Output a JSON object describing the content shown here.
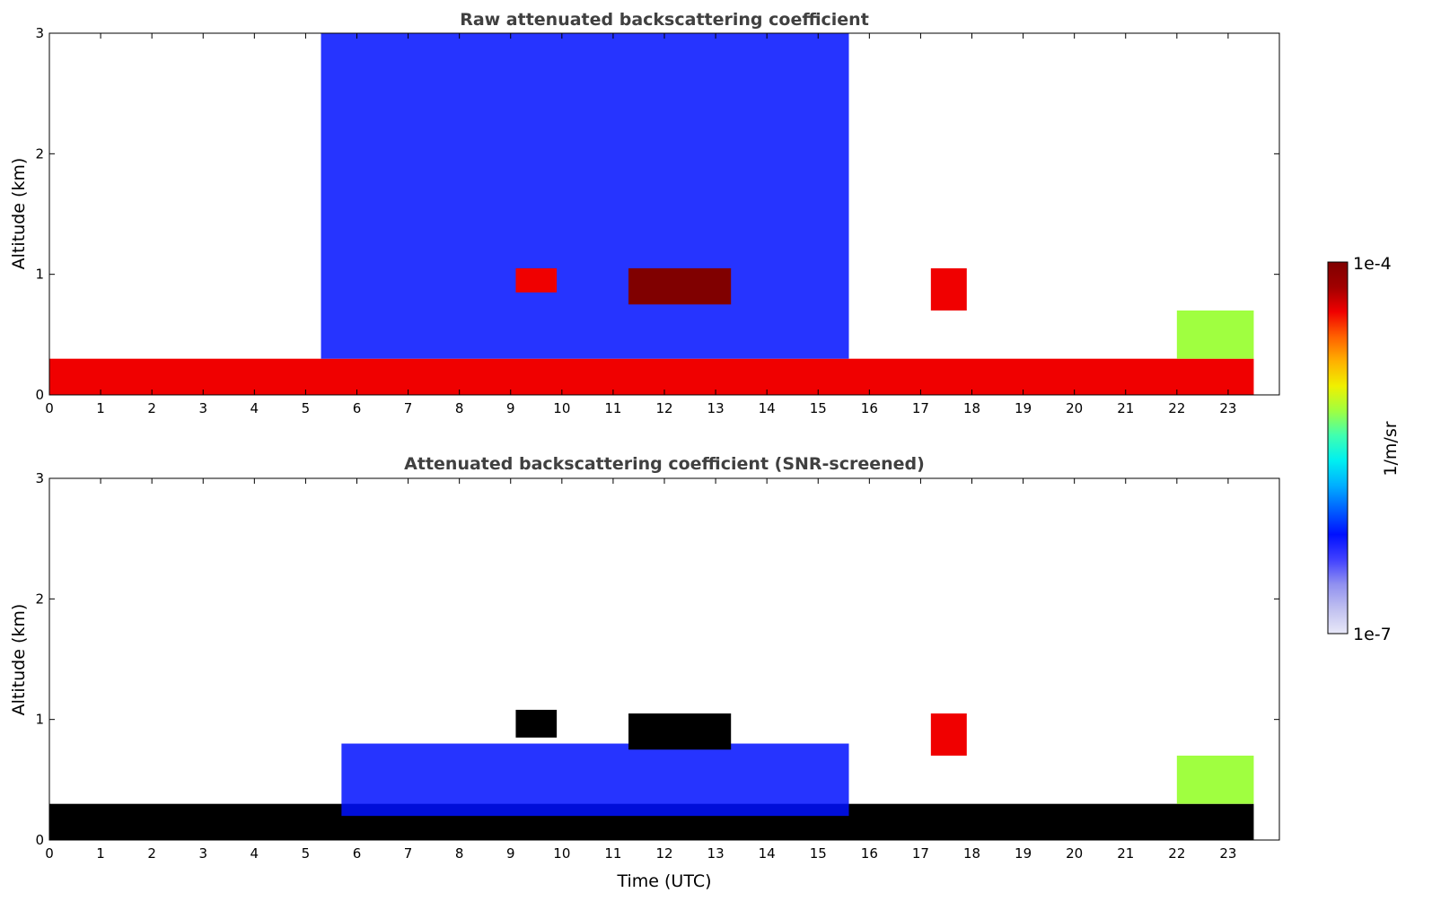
{
  "chart_data": [
    {
      "type": "heatmap",
      "title": "Raw attenuated backscattering coefficient",
      "xlabel": "",
      "ylabel": "Altitude (km)",
      "xlim": [
        0,
        24
      ],
      "ylim": [
        0,
        3
      ],
      "xticks": [
        "0",
        "1",
        "2",
        "3",
        "4",
        "5",
        "6",
        "7",
        "8",
        "9",
        "10",
        "11",
        "12",
        "13",
        "14",
        "15",
        "16",
        "17",
        "18",
        "19",
        "20",
        "21",
        "22",
        "23"
      ],
      "yticks": [
        "0",
        "1",
        "2",
        "3"
      ],
      "grid": false,
      "features": [
        {
          "name": "boundary layer",
          "x": [
            0,
            23.5
          ],
          "y": [
            0,
            0.3
          ],
          "level": "high"
        },
        {
          "name": "noise region",
          "x": [
            5.3,
            15.6
          ],
          "y": [
            0.3,
            3.0
          ],
          "level": "low"
        },
        {
          "name": "cloud",
          "x": [
            11.3,
            13.3
          ],
          "y": [
            0.75,
            1.05
          ],
          "level": "saturated"
        },
        {
          "name": "cloud",
          "x": [
            9.1,
            9.9
          ],
          "y": [
            0.85,
            1.05
          ],
          "level": "high"
        },
        {
          "name": "cloud",
          "x": [
            17.2,
            17.9
          ],
          "y": [
            0.7,
            1.05
          ],
          "level": "high"
        },
        {
          "name": "aerosol layer",
          "x": [
            22.0,
            23.5
          ],
          "y": [
            0.3,
            0.7
          ],
          "level": "medium"
        }
      ]
    },
    {
      "type": "heatmap",
      "title": "Attenuated backscattering coefficient (SNR-screened)",
      "xlabel": "Time (UTC)",
      "ylabel": "Altitude (km)",
      "xlim": [
        0,
        24
      ],
      "ylim": [
        0,
        3
      ],
      "xticks": [
        "0",
        "1",
        "2",
        "3",
        "4",
        "5",
        "6",
        "7",
        "8",
        "9",
        "10",
        "11",
        "12",
        "13",
        "14",
        "15",
        "16",
        "17",
        "18",
        "19",
        "20",
        "21",
        "22",
        "23"
      ],
      "yticks": [
        "0",
        "1",
        "2",
        "3"
      ],
      "grid": false,
      "features": [
        {
          "name": "boundary layer",
          "x": [
            0,
            23.5
          ],
          "y": [
            0,
            0.3
          ],
          "level": "saturated"
        },
        {
          "name": "low aerosol",
          "x": [
            5.7,
            15.6
          ],
          "y": [
            0.2,
            0.8
          ],
          "level": "low"
        },
        {
          "name": "cloud",
          "x": [
            11.3,
            13.3
          ],
          "y": [
            0.75,
            1.05
          ],
          "level": "saturated"
        },
        {
          "name": "cloud",
          "x": [
            9.1,
            9.9
          ],
          "y": [
            0.85,
            1.08
          ],
          "level": "saturated"
        },
        {
          "name": "cloud",
          "x": [
            17.2,
            17.9
          ],
          "y": [
            0.7,
            1.05
          ],
          "level": "high"
        },
        {
          "name": "aerosol layer",
          "x": [
            22.0,
            23.5
          ],
          "y": [
            0.3,
            0.7
          ],
          "level": "medium"
        }
      ]
    }
  ],
  "colorbar": {
    "max_label": "1e-4",
    "min_label": "1e-7",
    "unit_label": "1/m/sr",
    "colors": [
      "#e8e8f8",
      "#c0c0f0",
      "#9090f0",
      "#4040ff",
      "#0010ff",
      "#0060ff",
      "#00b0ff",
      "#00f0f0",
      "#40ffb0",
      "#a0ff40",
      "#f0f000",
      "#ffb000",
      "#ff6000",
      "#f00000",
      "#a00000",
      "#800000"
    ]
  }
}
